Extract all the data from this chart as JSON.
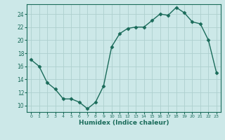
{
  "x": [
    0,
    1,
    2,
    3,
    4,
    5,
    6,
    7,
    8,
    9,
    10,
    11,
    12,
    13,
    14,
    15,
    16,
    17,
    18,
    19,
    20,
    21,
    22,
    23
  ],
  "y": [
    17,
    16,
    13.5,
    12.5,
    11,
    11,
    10.5,
    9.5,
    10.5,
    13,
    19,
    21,
    21.8,
    22,
    22,
    23,
    24,
    23.8,
    25,
    24.2,
    22.8,
    22.5,
    20,
    15
  ],
  "line_color": "#1a6b5a",
  "marker_color": "#1a6b5a",
  "bg_color": "#cce8e8",
  "grid_color": "#aed0ce",
  "xlabel": "Humidex (Indice chaleur)",
  "xlim": [
    -0.5,
    23.5
  ],
  "ylim": [
    9,
    25.5
  ],
  "yticks": [
    10,
    12,
    14,
    16,
    18,
    20,
    22,
    24
  ],
  "xticks": [
    0,
    1,
    2,
    3,
    4,
    5,
    6,
    7,
    8,
    9,
    10,
    11,
    12,
    13,
    14,
    15,
    16,
    17,
    18,
    19,
    20,
    21,
    22,
    23
  ]
}
